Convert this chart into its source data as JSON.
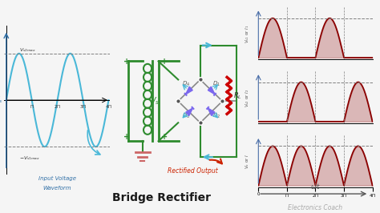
{
  "title": "Bridge Rectifier",
  "subtitle": "Electronics Coach",
  "bg_color": "#f0f0f0",
  "input_wave_color": "#4ab8d8",
  "output_wave_color": "#8b0000",
  "circuit_color": "#2e8b2e",
  "diode_color": "#7b68ee",
  "resistor_color": "#cc0000",
  "label_color": "#2e6ea6",
  "arrow_color": "#4ab8d8",
  "title_bg": "#d4b483",
  "xlabel_color": "#555555",
  "wave1_ylabel": "V_{s1} or I_1",
  "wave2_ylabel": "V_{s2} or I_2",
  "wave3_ylabel": "V_o or I",
  "input_ylabel": "V_s"
}
